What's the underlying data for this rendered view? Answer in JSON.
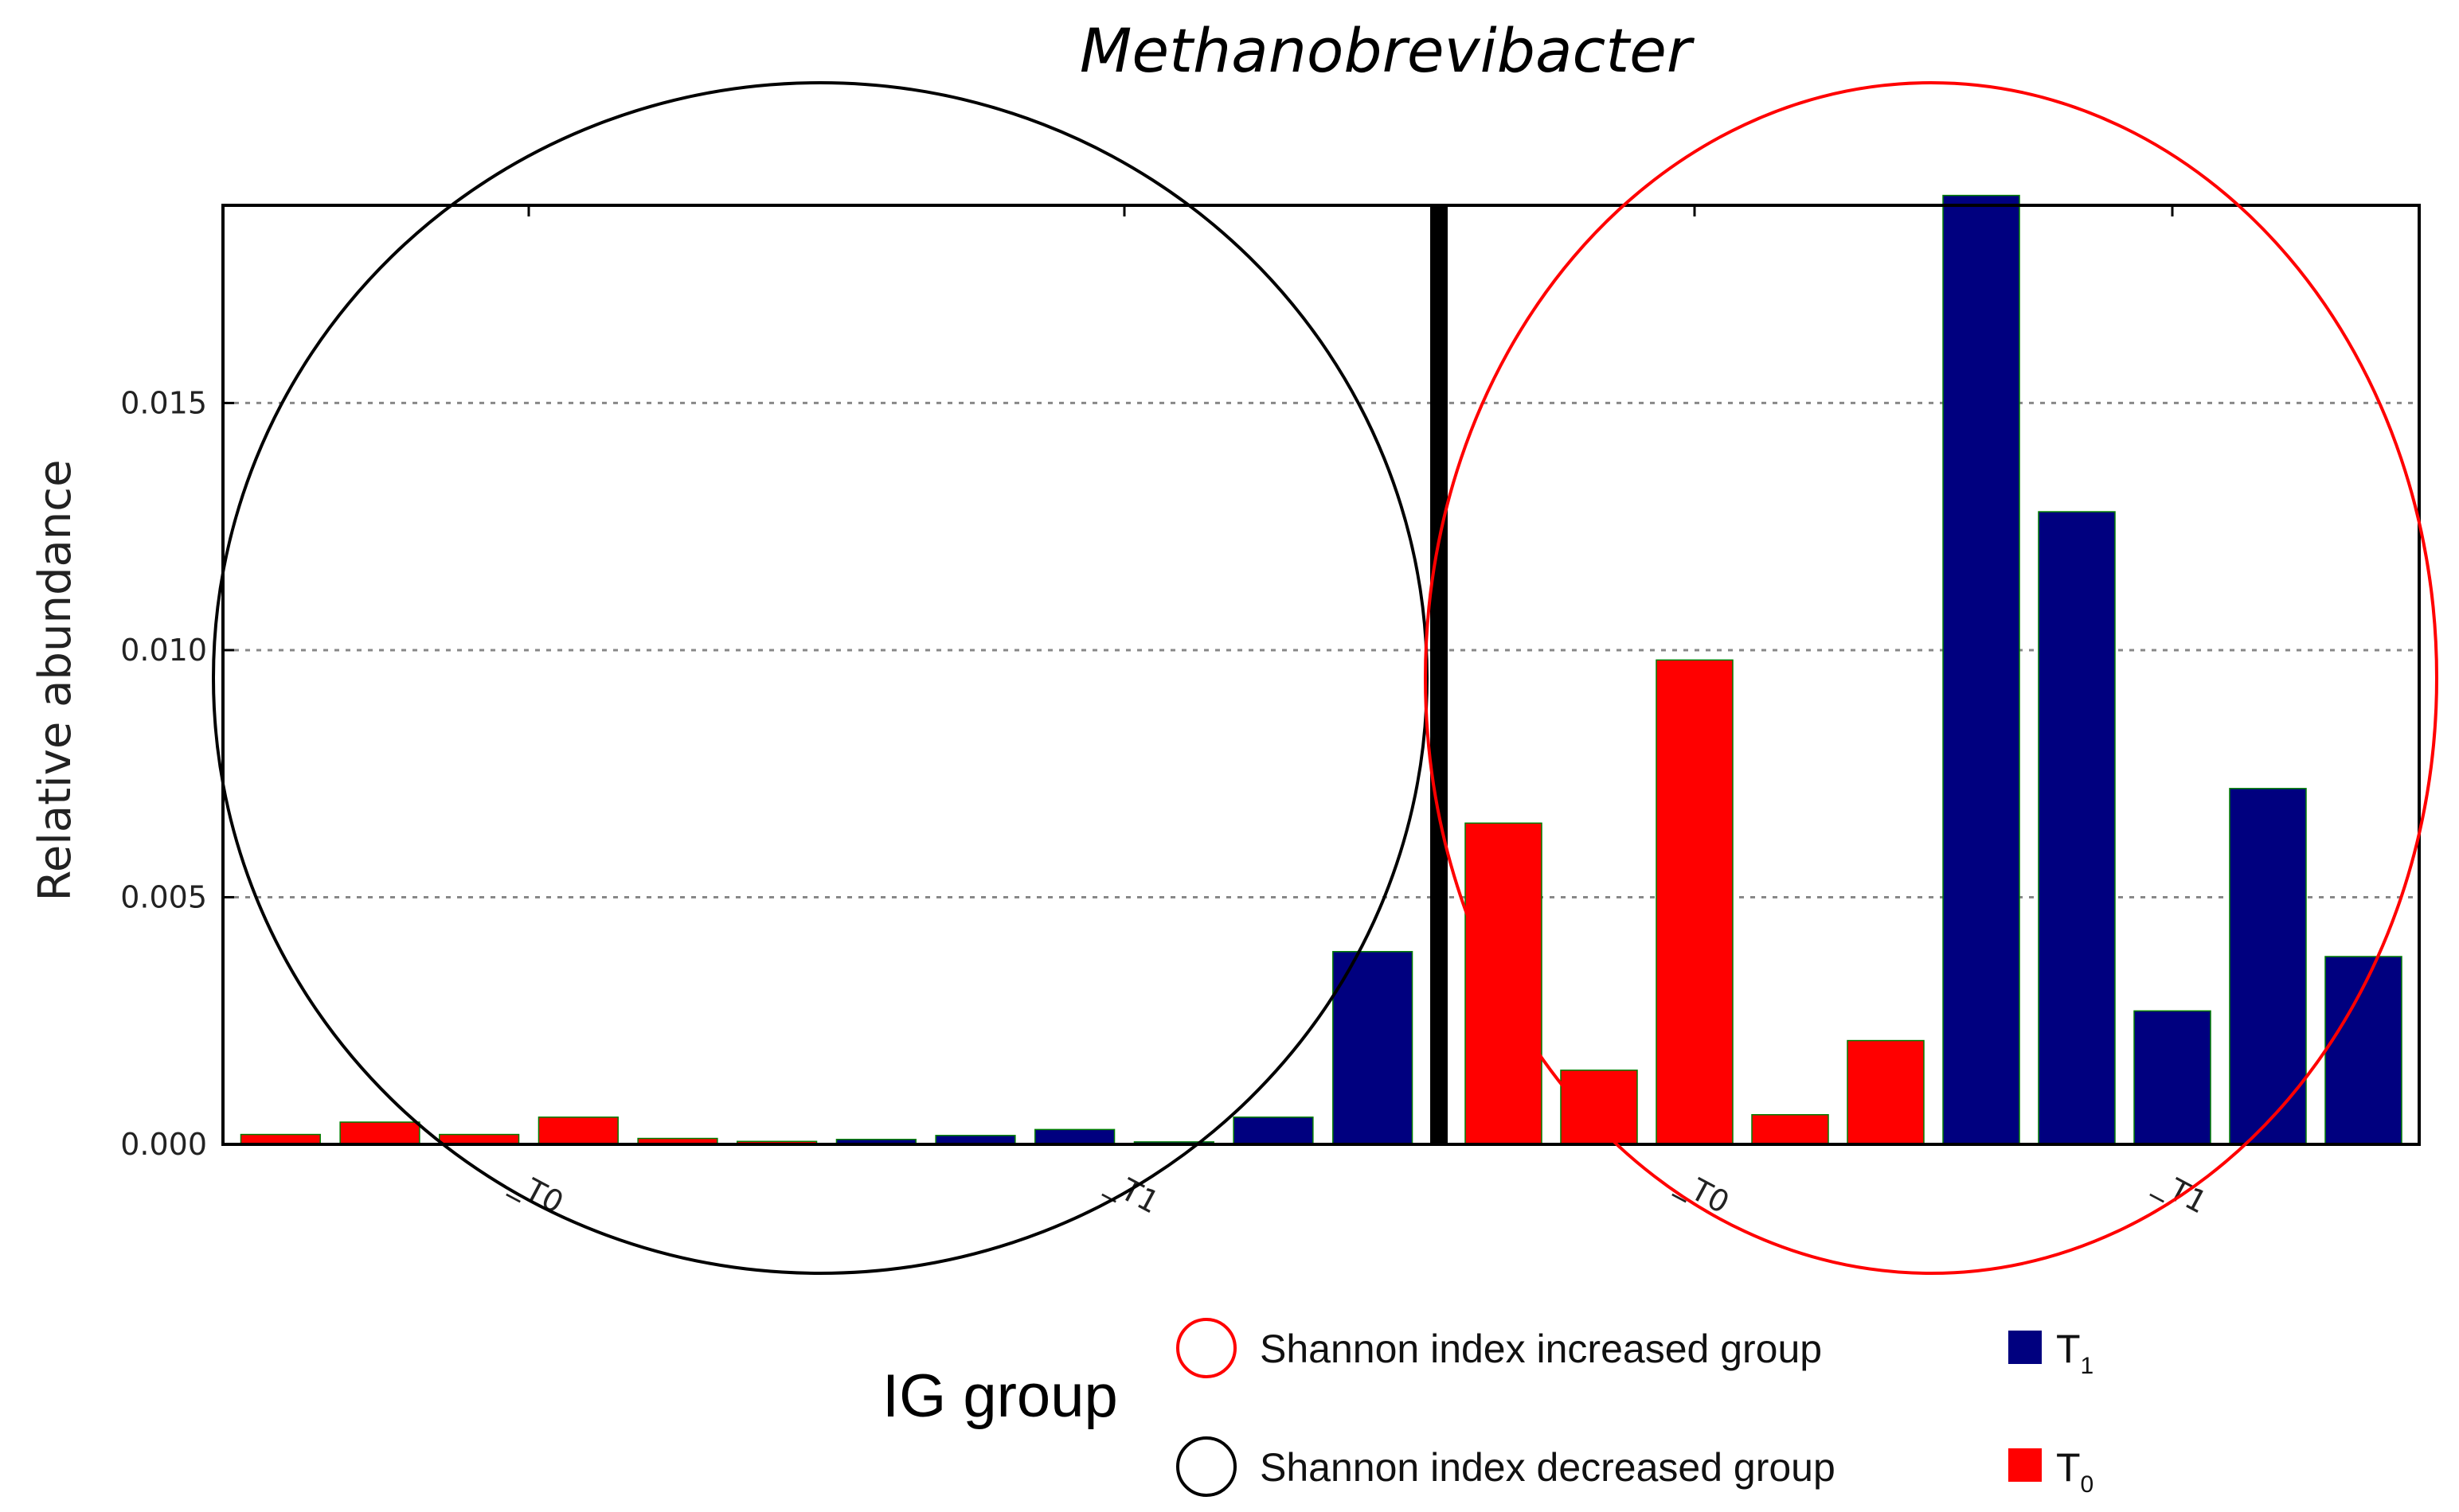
{
  "chart_data": {
    "type": "bar",
    "title": "Methanobrevibacter",
    "ylabel": "Relative abundance",
    "xlabel": "IG group",
    "ylim": [
      0,
      0.019
    ],
    "yticks": [
      "0.000",
      "0.005",
      "0.010",
      "0.015"
    ],
    "ytick_values": [
      0,
      0.005,
      0.01,
      0.015
    ],
    "grid": "horizontal dotted",
    "panels": [
      {
        "name": "decreased",
        "xtick_labels": [
          "_T0",
          "_T1"
        ],
        "values": [
          0.0002,
          0.00045,
          0.0002,
          0.00055,
          0.00012,
          6e-05,
          0.0001,
          0.00018,
          0.0003,
          5e-05,
          0.00055,
          0.0039
        ],
        "series_index": [
          "T0",
          "T0",
          "T0",
          "T0",
          "T0",
          "T0",
          "T1",
          "T1",
          "T1",
          "T1",
          "T1",
          "T1"
        ]
      },
      {
        "name": "increased",
        "xtick_labels": [
          "_T0",
          "_T1"
        ],
        "values": [
          0.0065,
          0.0015,
          0.0098,
          0.0006,
          0.0021,
          0.0192,
          0.0128,
          0.0027,
          0.0072,
          0.0038
        ],
        "series_index": [
          "T0",
          "T0",
          "T0",
          "T0",
          "T0",
          "T1",
          "T1",
          "T1",
          "T1",
          "T1"
        ]
      }
    ],
    "series": [
      {
        "name": "T1",
        "base": "T",
        "sub": "1",
        "color": "#00007f"
      },
      {
        "name": "T0",
        "base": "T",
        "sub": "0",
        "color": "#ff0000"
      }
    ]
  },
  "legend": {
    "increased_label": "Shannon index increased group",
    "decreased_label": "Shannon index decreased group",
    "increased_color": "#ff0000",
    "decreased_color": "#000000"
  }
}
